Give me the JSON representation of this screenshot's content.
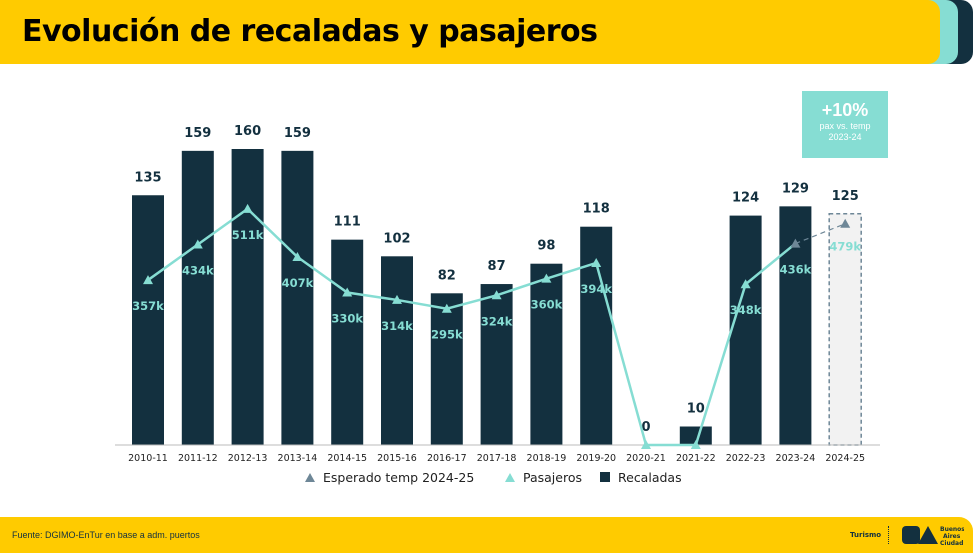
{
  "title": "Evolución de recaladas y pasajeros",
  "source": "Fuente: DGIMO-EnTur en base a adm. puertos",
  "footer_brand": "Turismo",
  "logo_text": "BA Buenos Aires Ciudad",
  "badge": {
    "value": "+10%",
    "line1": "pax vs. temp",
    "line2": "2023-24"
  },
  "colors": {
    "yellow": "#FFCB00",
    "navy": "#13303F",
    "teal": "#86DDD3",
    "projected": "#6E8797"
  },
  "chart_data": {
    "type": "bar",
    "categories": [
      "2010-11",
      "2011-12",
      "2012-13",
      "2013-14",
      "2014-15",
      "2015-16",
      "2016-17",
      "2017-18",
      "2018-19",
      "2019-20",
      "2020-21",
      "2021-22",
      "2022-23",
      "2023-24",
      "2024-25"
    ],
    "series": [
      {
        "name": "Recaladas",
        "type": "bar",
        "values": [
          135,
          159,
          160,
          159,
          111,
          102,
          82,
          87,
          98,
          118,
          0,
          10,
          124,
          129,
          125
        ],
        "projected_last": true
      },
      {
        "name": "Pasajeros",
        "type": "line",
        "values": [
          357,
          434,
          511,
          407,
          330,
          314,
          295,
          324,
          360,
          394,
          0,
          0,
          348,
          436,
          null
        ],
        "labels": [
          "357k",
          "434k",
          "511k",
          "407k",
          "330k",
          "314k",
          "295k",
          "324k",
          "360k",
          "394k",
          "",
          "",
          "348k",
          "436k",
          ""
        ]
      },
      {
        "name": "Esperado temp 2024-25",
        "type": "point",
        "values": [
          null,
          null,
          null,
          null,
          null,
          null,
          null,
          null,
          null,
          null,
          null,
          null,
          null,
          436,
          479
        ],
        "label": "479k"
      }
    ],
    "legend": [
      "Esperado temp 2024-25",
      "Pasajeros",
      "Recaladas"
    ],
    "legend_position": "bottom",
    "grid": false
  }
}
